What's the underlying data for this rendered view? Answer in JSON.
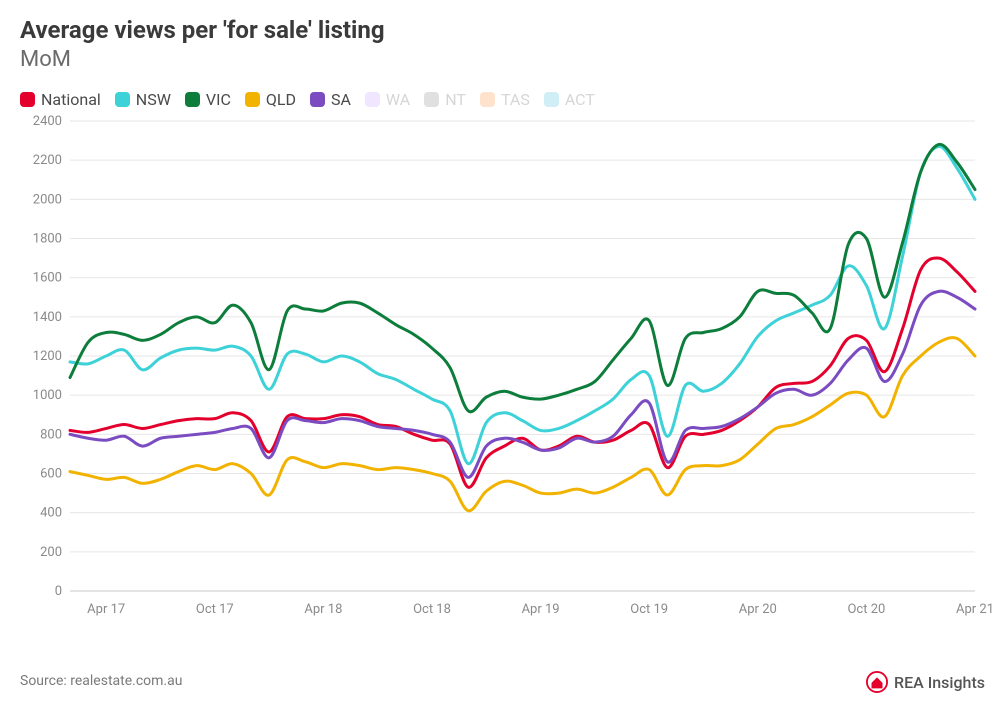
{
  "title": "Average views per 'for sale' listing",
  "subtitle": "MoM",
  "source_label": "Source: realestate.com.au",
  "brand_label": "REA Insights",
  "brand_color": "#e4002b",
  "chart": {
    "type": "line",
    "background_color": "#ffffff",
    "grid_color": "#e6e6e6",
    "axis_label_color": "#8a8a8a",
    "axis_fontsize": 13,
    "line_width": 3,
    "y_axis": {
      "min": 0,
      "max": 2400,
      "tick_step": 200,
      "ticks": [
        0,
        200,
        400,
        600,
        800,
        1000,
        1200,
        1400,
        1600,
        1800,
        2000,
        2200,
        2400
      ]
    },
    "x_axis": {
      "start": "2017-02",
      "end": "2021-04",
      "tick_labels": [
        "Apr 17",
        "Oct 17",
        "Apr 18",
        "Oct 18",
        "Apr 19",
        "Oct 19",
        "Apr 20",
        "Oct 20",
        "Apr 21"
      ],
      "tick_indices": [
        2,
        8,
        14,
        20,
        26,
        32,
        38,
        44,
        50
      ],
      "n_points": 51
    },
    "series": [
      {
        "name": "National",
        "color": "#e3002d",
        "muted": false,
        "data": [
          820,
          810,
          830,
          850,
          830,
          850,
          870,
          880,
          880,
          910,
          870,
          710,
          890,
          880,
          880,
          900,
          890,
          850,
          840,
          800,
          770,
          750,
          530,
          680,
          740,
          780,
          720,
          740,
          790,
          760,
          770,
          820,
          850,
          630,
          790,
          800,
          820,
          870,
          940,
          1040,
          1060,
          1070,
          1150,
          1290,
          1280,
          1120,
          1340,
          1640,
          1700,
          1630,
          1530
        ]
      },
      {
        "name": "NSW",
        "color": "#3dd1d8",
        "muted": false,
        "data": [
          1170,
          1160,
          1200,
          1230,
          1130,
          1190,
          1230,
          1240,
          1230,
          1250,
          1200,
          1030,
          1210,
          1210,
          1170,
          1200,
          1170,
          1110,
          1080,
          1030,
          980,
          920,
          650,
          860,
          910,
          870,
          820,
          830,
          870,
          920,
          980,
          1080,
          1100,
          790,
          1050,
          1020,
          1060,
          1160,
          1300,
          1380,
          1420,
          1460,
          1510,
          1660,
          1560,
          1340,
          1710,
          2140,
          2270,
          2160,
          2000
        ]
      },
      {
        "name": "VIC",
        "color": "#0d7d3b",
        "muted": false,
        "data": [
          1090,
          1270,
          1320,
          1310,
          1280,
          1310,
          1370,
          1400,
          1370,
          1460,
          1370,
          1130,
          1430,
          1440,
          1430,
          1470,
          1470,
          1420,
          1360,
          1310,
          1240,
          1140,
          920,
          990,
          1020,
          990,
          980,
          1000,
          1030,
          1070,
          1180,
          1290,
          1380,
          1050,
          1290,
          1320,
          1340,
          1400,
          1530,
          1520,
          1510,
          1420,
          1340,
          1770,
          1800,
          1500,
          1780,
          2140,
          2280,
          2190,
          2050
        ]
      },
      {
        "name": "QLD",
        "color": "#f2b200",
        "muted": false,
        "data": [
          610,
          590,
          570,
          580,
          550,
          570,
          610,
          640,
          620,
          650,
          600,
          490,
          670,
          660,
          630,
          650,
          640,
          620,
          630,
          620,
          600,
          560,
          410,
          510,
          560,
          540,
          500,
          500,
          520,
          500,
          530,
          580,
          620,
          490,
          620,
          640,
          640,
          670,
          750,
          830,
          850,
          890,
          950,
          1010,
          1000,
          890,
          1100,
          1200,
          1270,
          1290,
          1200
        ]
      },
      {
        "name": "SA",
        "color": "#7b4bc2",
        "muted": false,
        "data": [
          800,
          780,
          770,
          790,
          740,
          780,
          790,
          800,
          810,
          830,
          830,
          680,
          870,
          870,
          860,
          880,
          870,
          840,
          830,
          820,
          800,
          760,
          580,
          740,
          780,
          760,
          720,
          730,
          780,
          760,
          790,
          900,
          960,
          660,
          820,
          830,
          840,
          880,
          940,
          1010,
          1030,
          1000,
          1060,
          1180,
          1240,
          1070,
          1210,
          1460,
          1530,
          1500,
          1440
        ]
      },
      {
        "name": "WA",
        "color": "#f0e6ff",
        "muted": true,
        "data": []
      },
      {
        "name": "NT",
        "color": "#e0e0e0",
        "muted": true,
        "data": []
      },
      {
        "name": "TAS",
        "color": "#ffe2cc",
        "muted": true,
        "data": []
      },
      {
        "name": "ACT",
        "color": "#cfeef5",
        "muted": true,
        "data": []
      }
    ]
  }
}
